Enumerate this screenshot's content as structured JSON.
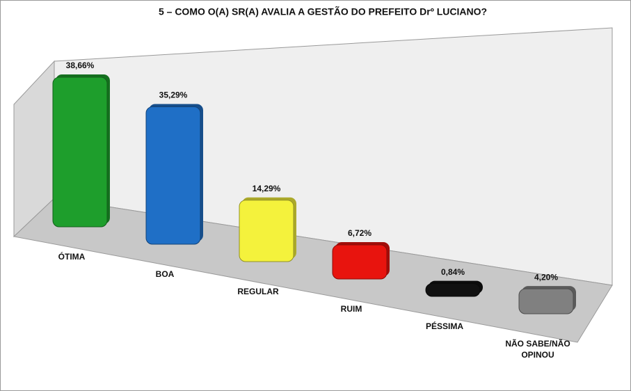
{
  "chart_data": {
    "type": "bar3d",
    "title": "5 – COMO O(A) SR(A) AVALIA A GESTÃO DO PREFEITO Drº LUCIANO?",
    "categories": [
      "ÓTIMA",
      "BOA",
      "REGULAR",
      "RUIM",
      "PÉSSIMA",
      "NÃO SABE/NÃO OPINOU"
    ],
    "values": [
      38.66,
      35.29,
      14.29,
      6.72,
      0.84,
      4.2
    ],
    "value_labels": [
      "38,66%",
      "35,29%",
      "14,29%",
      "6,72%",
      "0,84%",
      "4,20%"
    ],
    "colors": [
      "#1e9e2c",
      "#1f6fc6",
      "#f4f23c",
      "#e8140e",
      "#111111",
      "#808080"
    ]
  }
}
